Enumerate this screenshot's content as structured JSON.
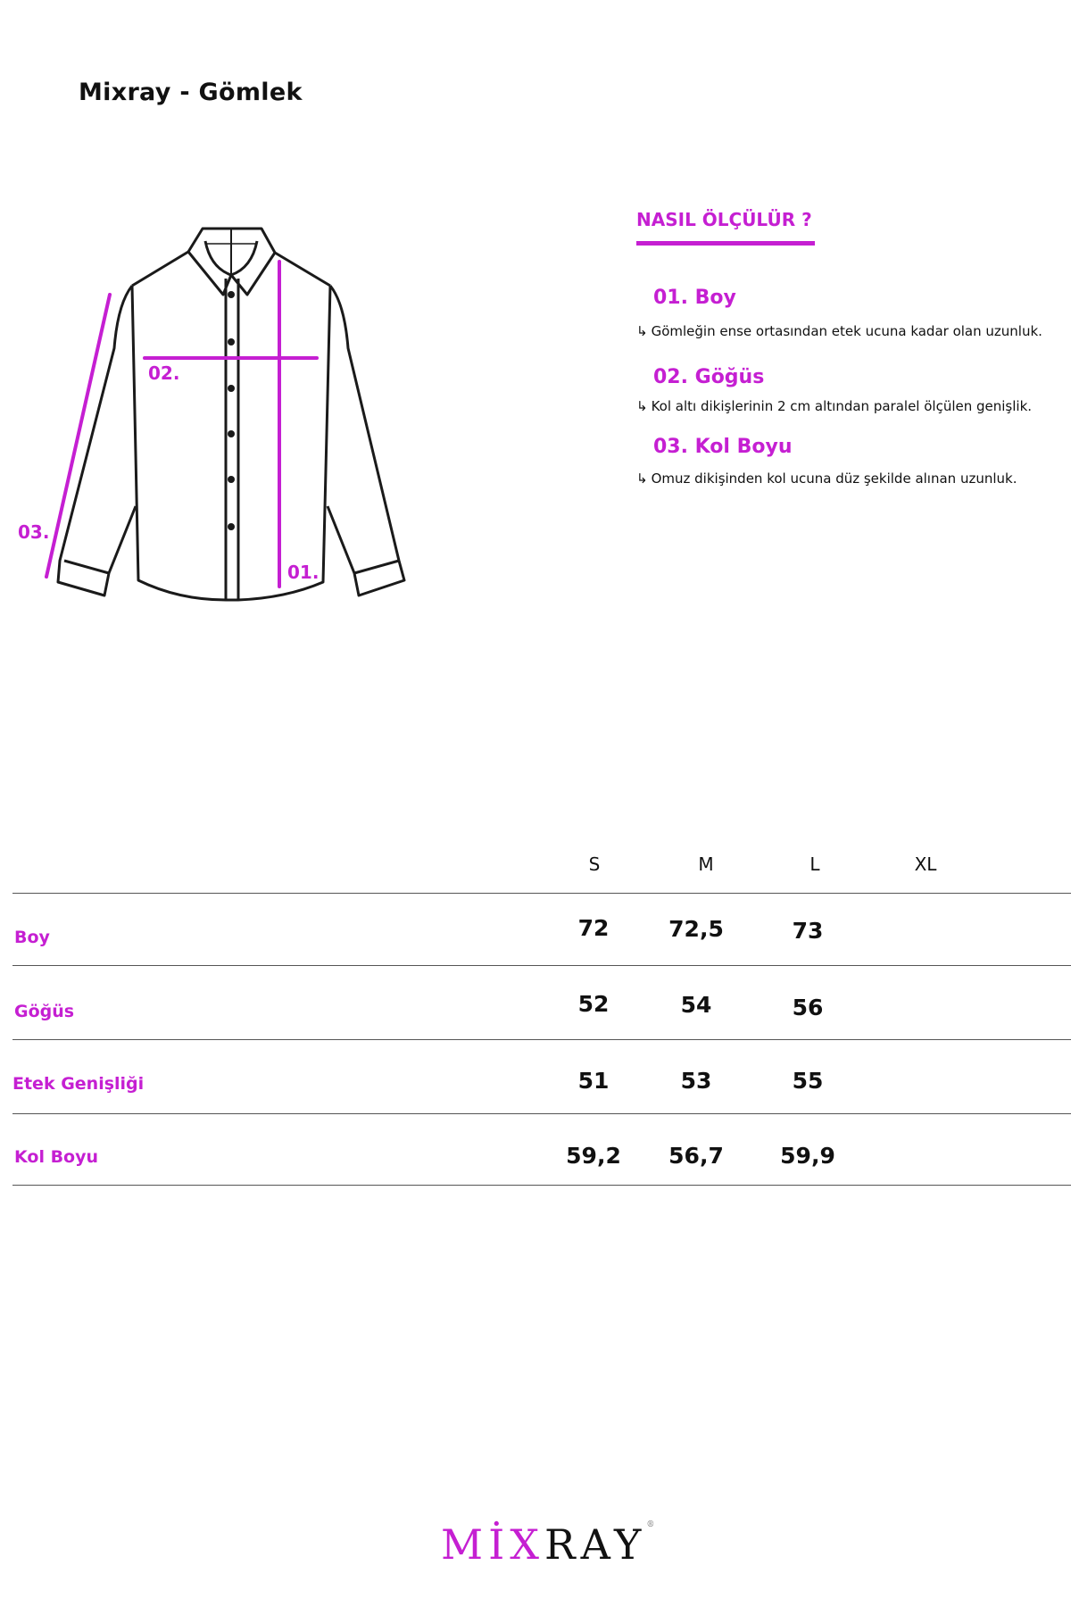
{
  "header": {
    "title": "Mixray - Gömlek"
  },
  "diagram": {
    "labels": {
      "boy": "01.",
      "gogus": "02.",
      "kol_boyu": "03."
    },
    "accent_color": "#c51fd2"
  },
  "howto": {
    "title": "NASIL ÖLÇÜLÜR ?",
    "arrow_icon": "↳",
    "items": [
      {
        "title": "01. Boy",
        "desc": "Gömleğin ense ortasından etek ucuna kadar olan uzunluk."
      },
      {
        "title": "02. Göğüs",
        "desc": "Kol altı dikişlerinin 2 cm altından paralel ölçülen genişlik."
      },
      {
        "title": "03. Kol Boyu",
        "desc": "Omuz dikişinden kol ucuna düz şekilde alınan uzunluk."
      }
    ]
  },
  "size_table": {
    "columns": [
      "S",
      "M",
      "L",
      "XL"
    ],
    "rows": [
      {
        "label": "Boy",
        "values": [
          "72",
          "72,5",
          "73",
          ""
        ]
      },
      {
        "label": "Göğüs",
        "values": [
          "52",
          "54",
          "56",
          ""
        ]
      },
      {
        "label": "Etek Genişliği",
        "values": [
          "51",
          "53",
          "55",
          ""
        ]
      },
      {
        "label": "Kol Boyu",
        "values": [
          "59,2",
          "56,7",
          "59,9",
          ""
        ]
      }
    ]
  },
  "logo": {
    "mix": "MİX",
    "ray": "RAY",
    "reg": "®"
  }
}
